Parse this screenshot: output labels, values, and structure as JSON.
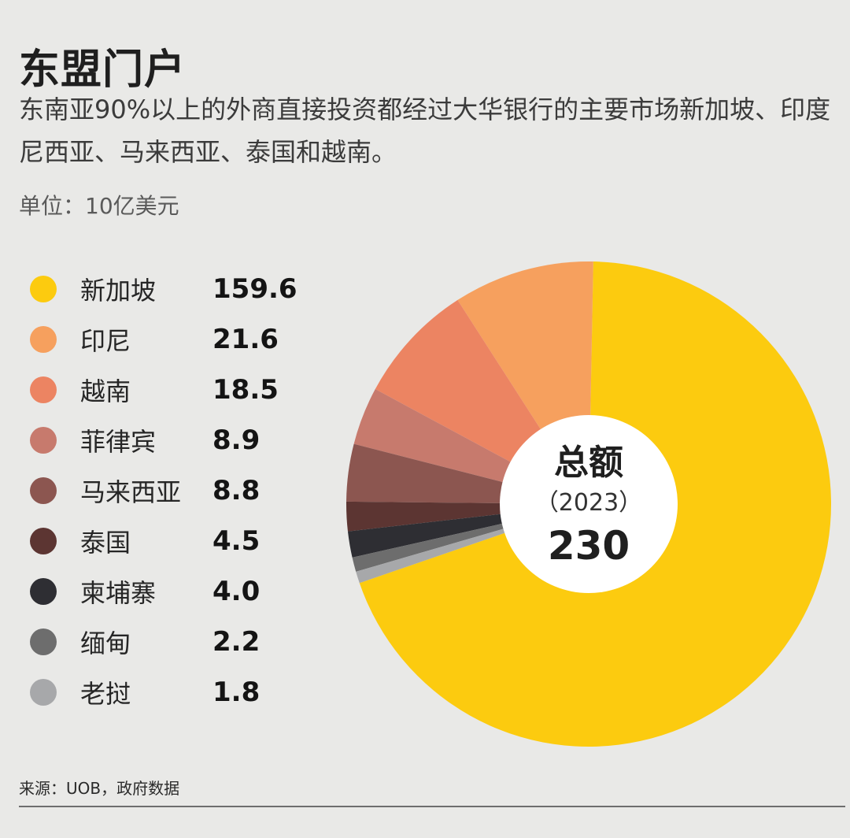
{
  "title": "东盟门户",
  "subtitle": "东南亚90%以上的外商直接投资都经过大华银行的主要市场新加坡、印度尼西亚、马来西亚、泰国和越南。",
  "unit": "单位：10亿美元",
  "center": {
    "label": "总额",
    "year": "（2023）",
    "total": "230"
  },
  "source": "来源：UOB，政府数据",
  "chart_data": {
    "type": "pie",
    "style": "donut",
    "title": "东盟门户",
    "unit": "单位：10亿美元",
    "legend_position": "left",
    "categories": [
      "新加坡",
      "印尼",
      "越南",
      "菲律宾",
      "马来西亚",
      "泰国",
      "柬埔寨",
      "缅甸",
      "老挝"
    ],
    "values": [
      159.6,
      21.6,
      18.5,
      8.9,
      8.8,
      4.5,
      4.0,
      2.2,
      1.8
    ],
    "value_labels": [
      "159.6",
      "21.6",
      "18.5",
      "8.9",
      "8.8",
      "4.5",
      "4.0",
      "2.2",
      "1.8"
    ],
    "colors": [
      "#fccb0f",
      "#f6a05e",
      "#ec8462",
      "#c77a6d",
      "#8c5650",
      "#5c3532",
      "#2e2e33",
      "#6d6d6d",
      "#a7a8aa"
    ],
    "total": 230,
    "total_year": 2023
  }
}
